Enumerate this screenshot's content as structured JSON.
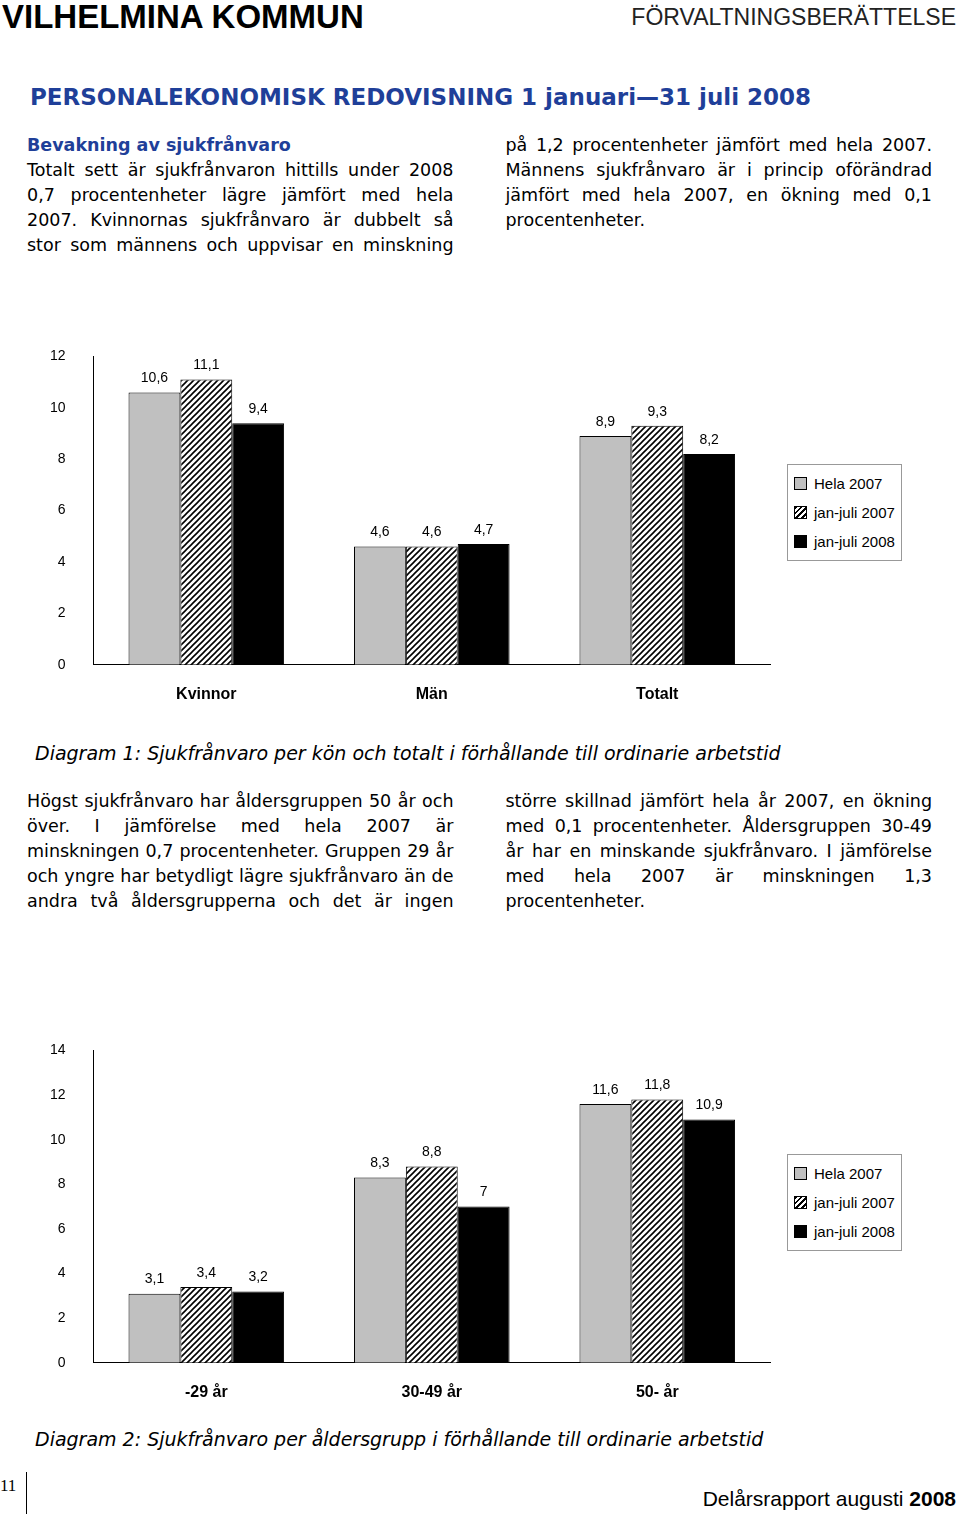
{
  "header": {
    "left": "VILHELMINA KOMMUN",
    "right": "FÖRVALTNINGSBERÄTTELSE"
  },
  "title": "PERSONALEKONOMISK REDOVISNING 1 januari—31 juli 2008",
  "text1": {
    "heading": "Bevakning av sjukfrånvaro",
    "body": "Totalt sett är sjukfrånvaron hittills under 2008 0,7 procentenheter lägre jämfört med hela 2007. Kvinnornas sjukfrånvaro är dubbelt så stor som männens och uppvisar en minskning på 1,2 procentenheter jämfört med hela 2007. Männens sjukfrånvaro är i princip oförändrad jämfört med hela 2007, en ökning med 0,1 procentenheter."
  },
  "text2": {
    "body": "Högst sjukfrånvaro har åldersgruppen 50 år och över. I jämförelse med hela 2007 är minskningen 0,7 procentenheter. Gruppen 29 år och yngre har betydligt lägre sjukfrånvaro än de andra två åldersgrupperna och det är ingen större skillnad jämfört hela år 2007, en ökning med 0,1 procentenheter. Åldersgruppen 30-49 år har en minskande sjukfrånvaro. I jämförelse med hela 2007 är minskningen 1,3 procentenheter."
  },
  "chart_data": [
    {
      "type": "bar",
      "title": "Diagram 1: Sjukfrånvaro per kön och totalt i förhållande till ordinarie arbetstid",
      "categories": [
        "Kvinnor",
        "Män",
        "Totalt"
      ],
      "series": [
        {
          "name": "Hela 2007",
          "color": "#c0c0c0",
          "values": [
            10.6,
            4.6,
            8.9
          ],
          "value_labels": [
            "10,6",
            "4,6",
            "8,9"
          ]
        },
        {
          "name": "jan-juli 2007",
          "color": "#000000",
          "marker": "hatch",
          "values": [
            11.1,
            4.6,
            9.3
          ],
          "value_labels": [
            "11,1",
            "4,6",
            "9,3"
          ]
        },
        {
          "name": "jan-juli 2008",
          "color": "#000000",
          "values": [
            9.4,
            4.7,
            8.2
          ],
          "value_labels": [
            "9,4",
            "4,7",
            "8,2"
          ]
        }
      ],
      "ylim": [
        0,
        12
      ],
      "yticks": [
        0,
        2,
        4,
        6,
        8,
        10,
        12
      ],
      "grid": false,
      "legend": "right",
      "data_labels": true
    },
    {
      "type": "bar",
      "title": "Diagram 2: Sjukfrånvaro per åldersgrupp i förhållande till ordinarie arbetstid",
      "categories": [
        "-29 år",
        "30-49 år",
        "50- år"
      ],
      "series": [
        {
          "name": "Hela 2007",
          "color": "#c0c0c0",
          "values": [
            3.1,
            8.3,
            11.6
          ],
          "value_labels": [
            "3,1",
            "8,3",
            "11,6"
          ]
        },
        {
          "name": "jan-juli 2007",
          "color": "#000000",
          "marker": "hatch",
          "values": [
            3.4,
            8.8,
            11.8
          ],
          "value_labels": [
            "3,4",
            "8,8",
            "11,8"
          ]
        },
        {
          "name": "jan-juli 2008",
          "color": "#000000",
          "values": [
            3.2,
            7,
            10.9
          ],
          "value_labels": [
            "3,2",
            "7",
            "10,9"
          ]
        }
      ],
      "ylim": [
        0,
        14
      ],
      "yticks": [
        0,
        2,
        4,
        6,
        8,
        10,
        12,
        14
      ],
      "grid": false,
      "legend": "right",
      "data_labels": true
    }
  ],
  "footer": {
    "page": "11",
    "report": "Delårsrapport augusti",
    "year": "2008"
  }
}
